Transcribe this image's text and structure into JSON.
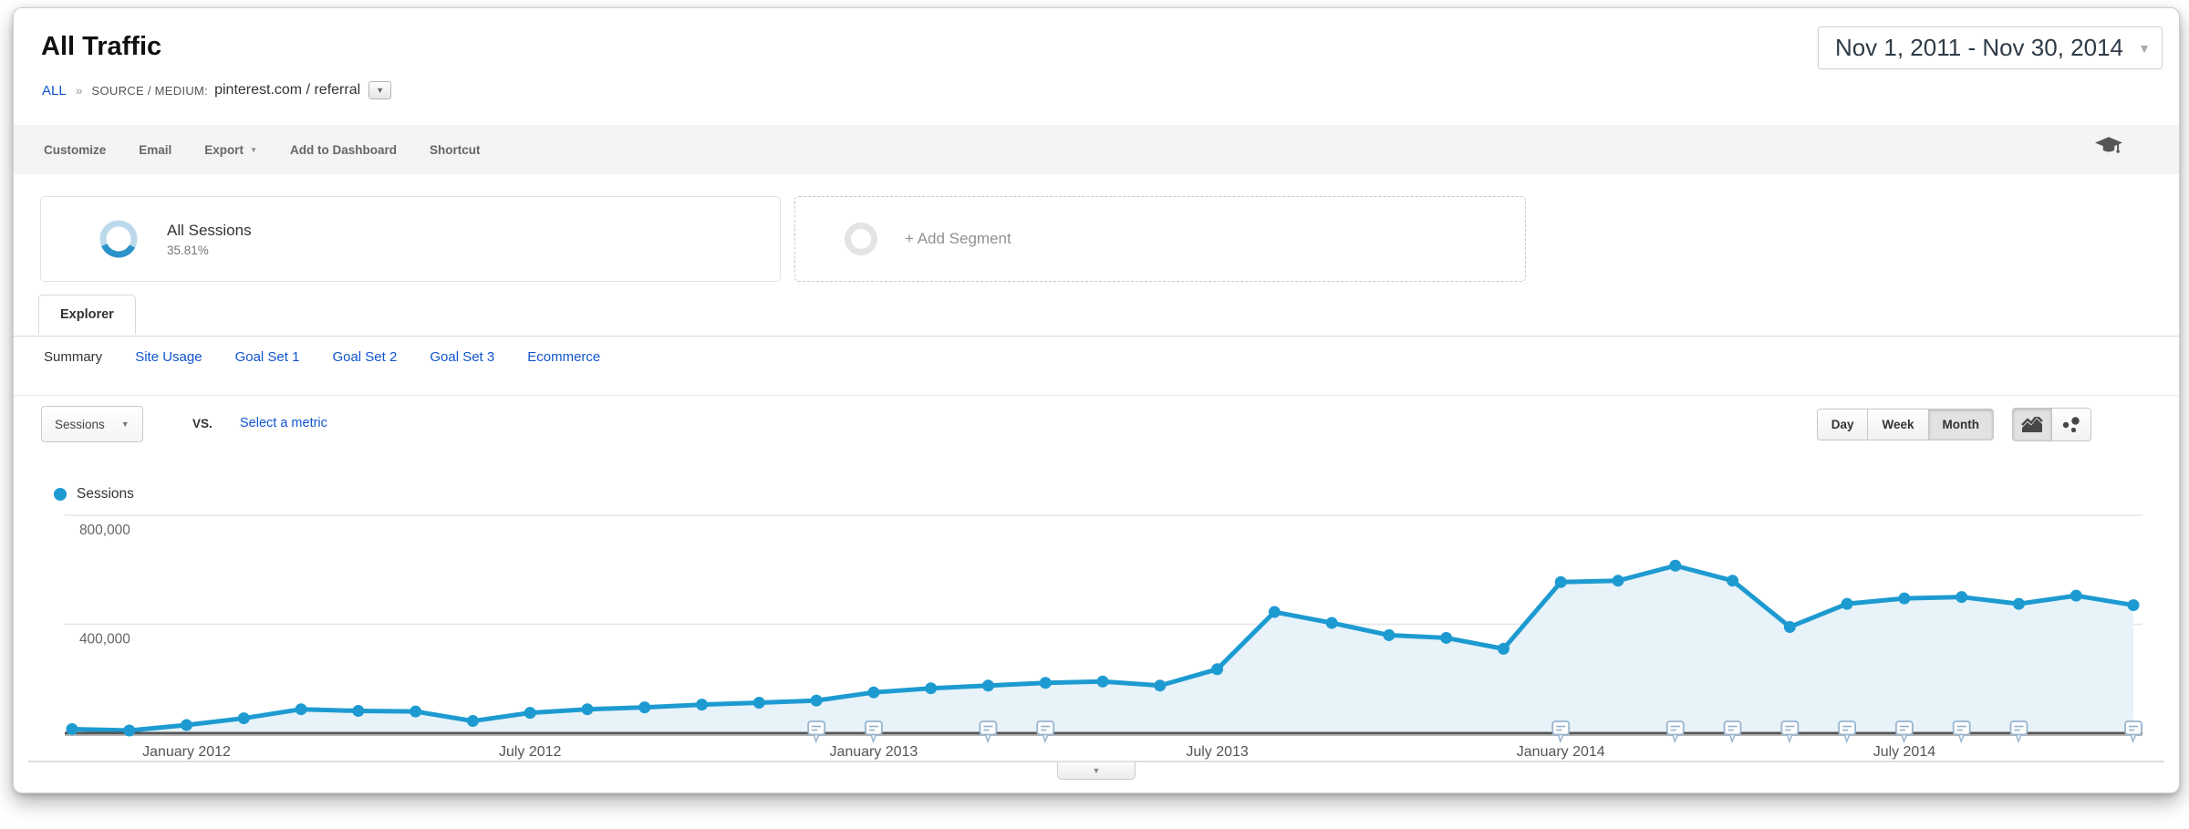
{
  "header": {
    "title": "All Traffic",
    "breadcrumb": {
      "root": "ALL",
      "separator": "»",
      "dimension_label": "SOURCE / MEDIUM:",
      "dimension_value": "pinterest.com / referral"
    },
    "date_range": "Nov 1, 2011 - Nov 30, 2014"
  },
  "toolbar": {
    "items": [
      "Customize",
      "Email",
      "Export",
      "Add to Dashboard",
      "Shortcut"
    ]
  },
  "segments": {
    "all_sessions": {
      "label": "All Sessions",
      "percent": "35.81%"
    },
    "add_segment": {
      "label": "+ Add Segment"
    }
  },
  "tabs": {
    "explorer": "Explorer"
  },
  "subtabs": [
    {
      "label": "Summary",
      "active": true
    },
    {
      "label": "Site Usage",
      "active": false
    },
    {
      "label": "Goal Set 1",
      "active": false
    },
    {
      "label": "Goal Set 2",
      "active": false
    },
    {
      "label": "Goal Set 3",
      "active": false
    },
    {
      "label": "Ecommerce",
      "active": false
    }
  ],
  "controls": {
    "metric_dropdown": "Sessions",
    "vs_label": "vs.",
    "select_metric": "Select a metric",
    "granularity": [
      "Day",
      "Week",
      "Month"
    ],
    "granularity_active": "Month"
  },
  "legend": {
    "label": "Sessions",
    "color": "#1d9bd1"
  },
  "icons": {
    "dropdown_arrow": "▼"
  },
  "chart_data": {
    "type": "area",
    "title": "",
    "xlabel": "",
    "ylabel": "Sessions",
    "grid": "horizontal",
    "legend_position": "top-left",
    "line_color": "#1d9bd1",
    "fill_color": "#e7f2f9",
    "x": [
      "Nov 2011",
      "Dec 2011",
      "Jan 2012",
      "Feb 2012",
      "Mar 2012",
      "Apr 2012",
      "May 2012",
      "Jun 2012",
      "Jul 2012",
      "Aug 2012",
      "Sep 2012",
      "Oct 2012",
      "Nov 2012",
      "Dec 2012",
      "Jan 2013",
      "Feb 2013",
      "Mar 2013",
      "Apr 2013",
      "May 2013",
      "Jun 2013",
      "Jul 2013",
      "Aug 2013",
      "Sep 2013",
      "Oct 2013",
      "Nov 2013",
      "Dec 2013",
      "Jan 2014",
      "Feb 2014",
      "Mar 2014",
      "Apr 2014",
      "May 2014",
      "Jun 2014",
      "Jul 2014",
      "Aug 2014",
      "Sep 2014",
      "Oct 2014",
      "Nov 2014"
    ],
    "values": [
      15000,
      10000,
      30000,
      55000,
      88000,
      82000,
      80000,
      45000,
      75000,
      88000,
      95000,
      105000,
      112000,
      120000,
      150000,
      165000,
      175000,
      185000,
      190000,
      175000,
      235000,
      445000,
      405000,
      360000,
      350000,
      310000,
      555000,
      560000,
      615000,
      560000,
      390000,
      475000,
      495000,
      500000,
      475000,
      505000,
      470000
    ],
    "ylim": [
      0,
      830000
    ],
    "y_ticks": [
      {
        "label": "400,000",
        "value": 400000
      },
      {
        "label": "800,000",
        "value": 800000
      }
    ],
    "x_tick_labels": [
      "January 2012",
      "July 2012",
      "January 2013",
      "July 2013",
      "January 2014",
      "July 2014"
    ],
    "x_tick_indices": [
      2,
      8,
      14,
      20,
      26,
      32
    ],
    "annotation_indices": [
      13,
      14,
      16,
      17,
      26,
      28,
      29,
      30,
      31,
      32,
      33,
      34,
      36
    ]
  }
}
